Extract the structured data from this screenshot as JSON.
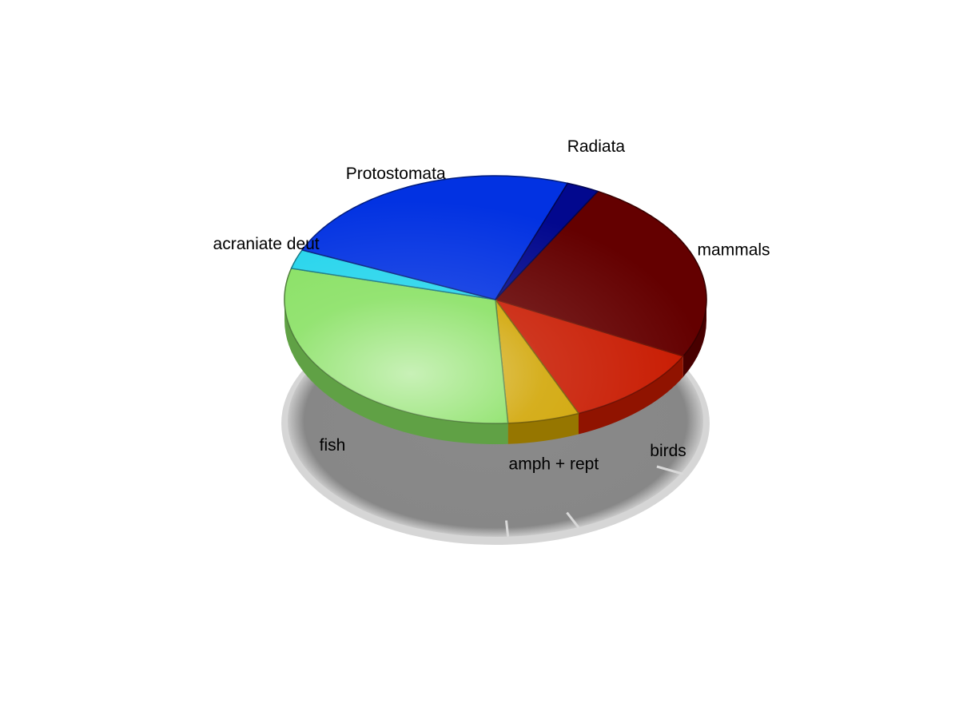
{
  "chart_data": {
    "type": "pie",
    "title": "",
    "style": "3d-pie",
    "categories": [
      "mammals",
      "birds",
      "amph + rept",
      "fish",
      "acraniate deut",
      "Protostomata",
      "Radiata"
    ],
    "values": [
      24.5,
      11.0,
      5.5,
      30.0,
      2.5,
      24.0,
      2.5
    ],
    "colors": [
      "#640000",
      "#c81a00",
      "#d0a400",
      "#86e060",
      "#22d4ec",
      "#0232e2",
      "#02088e"
    ],
    "legend": "none",
    "labels_on_slices": true
  }
}
